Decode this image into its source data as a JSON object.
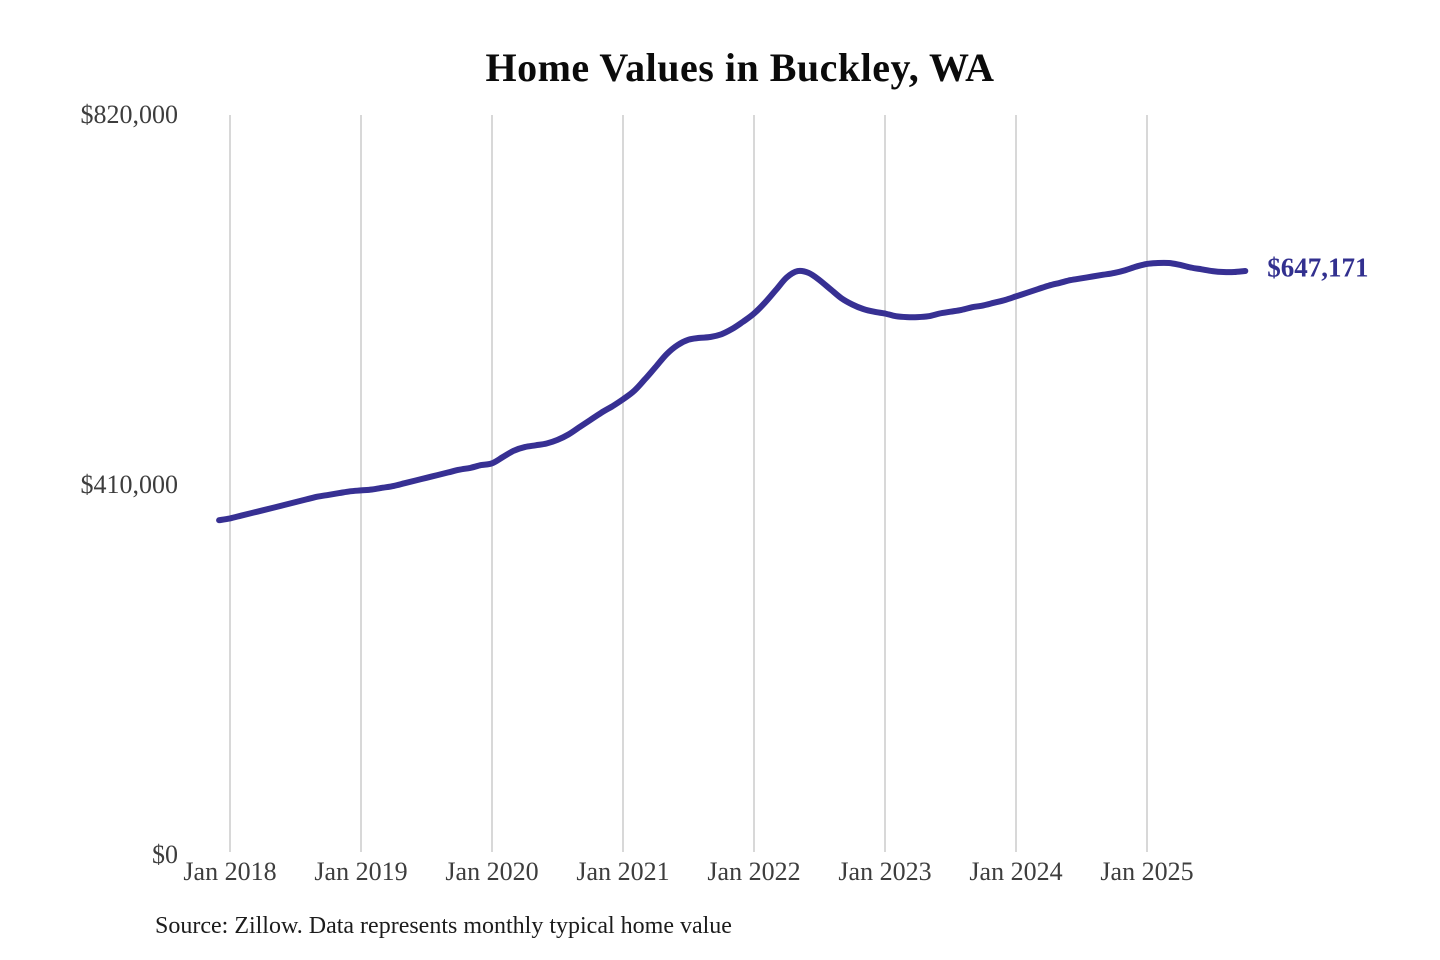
{
  "page": {
    "title": "Home Values in Buckley, WA",
    "source_note": "Source: Zillow. Data represents monthly typical home value"
  },
  "chart_data": {
    "type": "line",
    "title": "Home Values in Buckley, WA",
    "series_name": "Monthly typical home value",
    "x_axis_origin": "2018-01",
    "x_start": "2017-12",
    "x_interval": "monthly",
    "x_tick_labels": [
      "Jan 2018",
      "Jan 2019",
      "Jan 2020",
      "Jan 2021",
      "Jan 2022",
      "Jan 2023",
      "Jan 2024",
      "Jan 2025"
    ],
    "y_ticks": [
      {
        "label": "$0",
        "value": 0
      },
      {
        "label": "$410,000",
        "value": 410000
      },
      {
        "label": "$820,000",
        "value": 820000
      }
    ],
    "ylim": [
      0,
      820000
    ],
    "grid": "vertical-only",
    "legend": "none",
    "end_label": "$647,171",
    "end_value": 647171,
    "values": [
      371000,
      373000,
      376000,
      379000,
      382000,
      385000,
      388000,
      391000,
      394000,
      397000,
      399000,
      401000,
      403000,
      404000,
      405000,
      407000,
      409000,
      412000,
      415000,
      418000,
      421000,
      424000,
      427000,
      429000,
      432000,
      434000,
      441000,
      448000,
      452000,
      454000,
      456000,
      460000,
      466000,
      474000,
      482000,
      490000,
      497000,
      505000,
      514000,
      527000,
      541000,
      555000,
      565000,
      571000,
      573000,
      574000,
      577000,
      583000,
      591000,
      600000,
      612000,
      626000,
      640000,
      647000,
      645000,
      637000,
      627000,
      617000,
      610000,
      605000,
      602000,
      600000,
      597000,
      596000,
      596000,
      597000,
      600000,
      602000,
      604000,
      607000,
      609000,
      612000,
      615000,
      619000,
      623000,
      627000,
      631000,
      634000,
      637000,
      639000,
      641000,
      643000,
      645000,
      648000,
      652000,
      655000,
      656000,
      656000,
      654000,
      651000,
      649000,
      647000,
      646000,
      646000,
      647171
    ],
    "colors": {
      "line": "#373093",
      "grid": "#cccccc",
      "tick_text": "#3d3d3d",
      "title_text": "#0b0b0b",
      "source_text": "#1c1c1c",
      "end_label_text": "#32308f"
    }
  }
}
